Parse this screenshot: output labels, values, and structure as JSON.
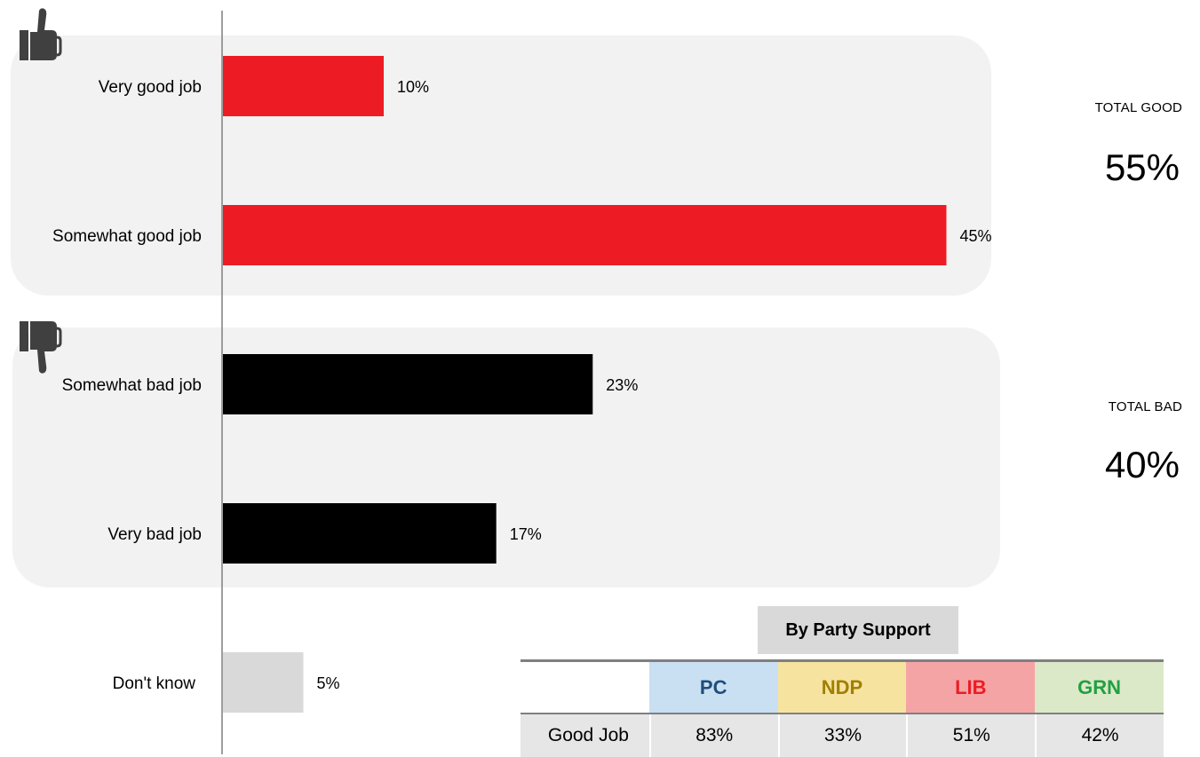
{
  "chart_data": {
    "type": "bar",
    "orientation": "horizontal",
    "categories": [
      "Very good job",
      "Somewhat good job",
      "Somewhat bad job",
      "Very bad job",
      "Don't know"
    ],
    "values": [
      10,
      45,
      23,
      17,
      5
    ],
    "value_labels": [
      "10%",
      "45%",
      "23%",
      "17%",
      "5%"
    ],
    "bar_colors": [
      "#ed1c24",
      "#ed1c24",
      "#000000",
      "#000000",
      "#d9d9d9"
    ],
    "xlim": [
      0,
      100
    ],
    "groups": [
      {
        "name": "good",
        "categories": [
          "Very good job",
          "Somewhat good job"
        ],
        "icon": "thumbs-up-icon"
      },
      {
        "name": "bad",
        "categories": [
          "Somewhat bad job",
          "Very bad job"
        ],
        "icon": "thumbs-down-icon"
      }
    ],
    "grid": false
  },
  "totals": {
    "good": {
      "label": "TOTAL GOOD",
      "value": "55%"
    },
    "bad": {
      "label": "TOTAL BAD",
      "value": "40%"
    }
  },
  "party_support": {
    "title": "By Party Support",
    "row_label": "Good Job",
    "parties": [
      {
        "name": "PC",
        "value": "83%",
        "bg": "#c9dff2",
        "color": "#1f4e79"
      },
      {
        "name": "NDP",
        "value": "33%",
        "bg": "#f6e3a0",
        "color": "#a07f00"
      },
      {
        "name": "LIB",
        "value": "51%",
        "bg": "#f5a4a6",
        "color": "#ed1c24"
      },
      {
        "name": "GRN",
        "value": "42%",
        "bg": "#dce9c8",
        "color": "#22a042"
      }
    ]
  },
  "colors": {
    "panel": "#f2f2f2",
    "icon": "#404040"
  }
}
